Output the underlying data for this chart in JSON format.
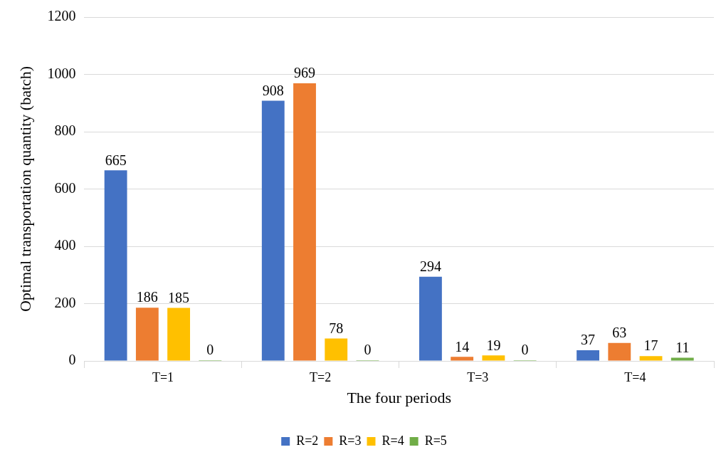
{
  "chart_data": {
    "type": "bar",
    "xlabel": "The four periods",
    "ylabel": "Optimal transportation quantity (batch)",
    "categories": [
      "T=1",
      "T=2",
      "T=3",
      "T=4"
    ],
    "series": [
      {
        "name": "R=2",
        "color": "#4472c4",
        "values": [
          665,
          908,
          294,
          37
        ]
      },
      {
        "name": "R=3",
        "color": "#ed7d31",
        "values": [
          186,
          969,
          14,
          63
        ]
      },
      {
        "name": "R=4",
        "color": "#ffc000",
        "values": [
          185,
          78,
          19,
          17
        ]
      },
      {
        "name": "R=5",
        "color": "#70ad47",
        "values": [
          0,
          0,
          0,
          11
        ]
      }
    ],
    "ylim": [
      0,
      1200
    ],
    "yticks": [
      0,
      200,
      400,
      600,
      800,
      1000,
      1200
    ],
    "grid": "y",
    "legend": "bottom",
    "data_labels": true
  }
}
